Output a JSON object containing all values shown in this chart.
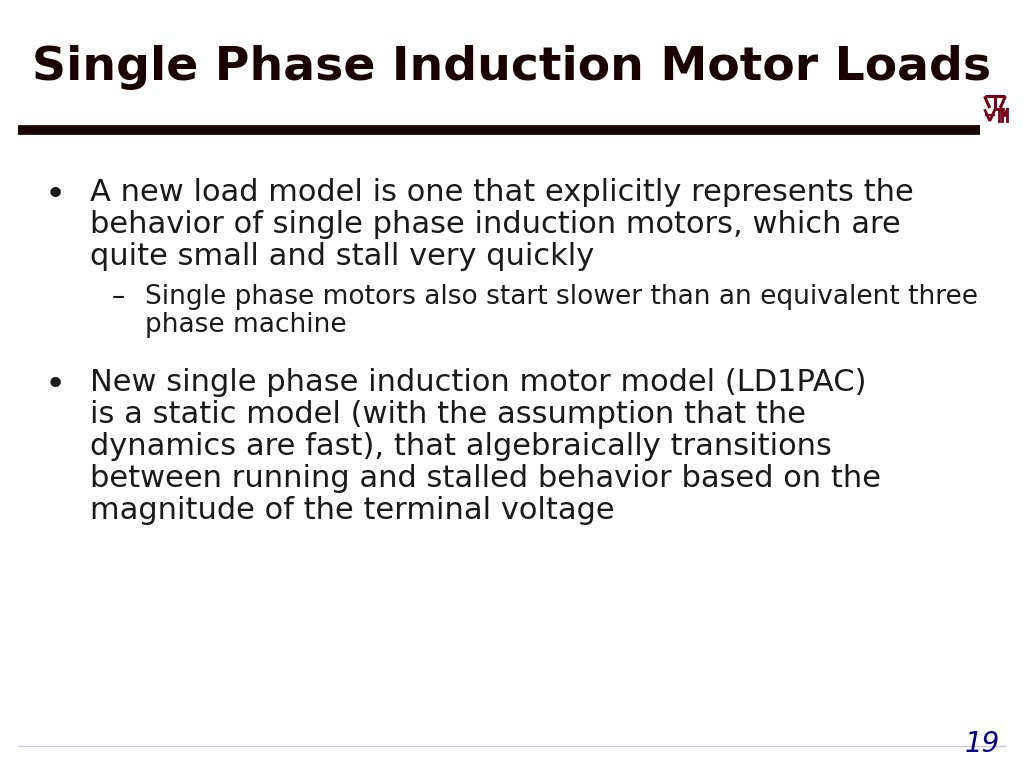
{
  "title": "Single Phase Induction Motor Loads",
  "title_color": "#1a0000",
  "title_fontsize": 34,
  "bg_color": "#ffffff",
  "separator_color": "#1a0000",
  "logo_color": "#7a0019",
  "page_number": "19",
  "page_number_color": "#00008B",
  "bullet1_line1": "A new load model is one that explicitly represents the",
  "bullet1_line2": "behavior of single phase induction motors, which are",
  "bullet1_line3": "quite small and stall very quickly",
  "sub1_line1": "Single phase motors also start slower than an equivalent three",
  "sub1_line2": "phase machine",
  "bullet2_line1": "New single phase induction motor model (LD1PAC)",
  "bullet2_line2": "is a static model (with the assumption that the",
  "bullet2_line3": "dynamics are fast), that algebraically transitions",
  "bullet2_line4": "between running and stalled behavior based on the",
  "bullet2_line5": "magnitude of the terminal voltage",
  "text_color": "#1a1a1a",
  "bullet_fontsize": 22,
  "sub_bullet_fontsize": 19
}
